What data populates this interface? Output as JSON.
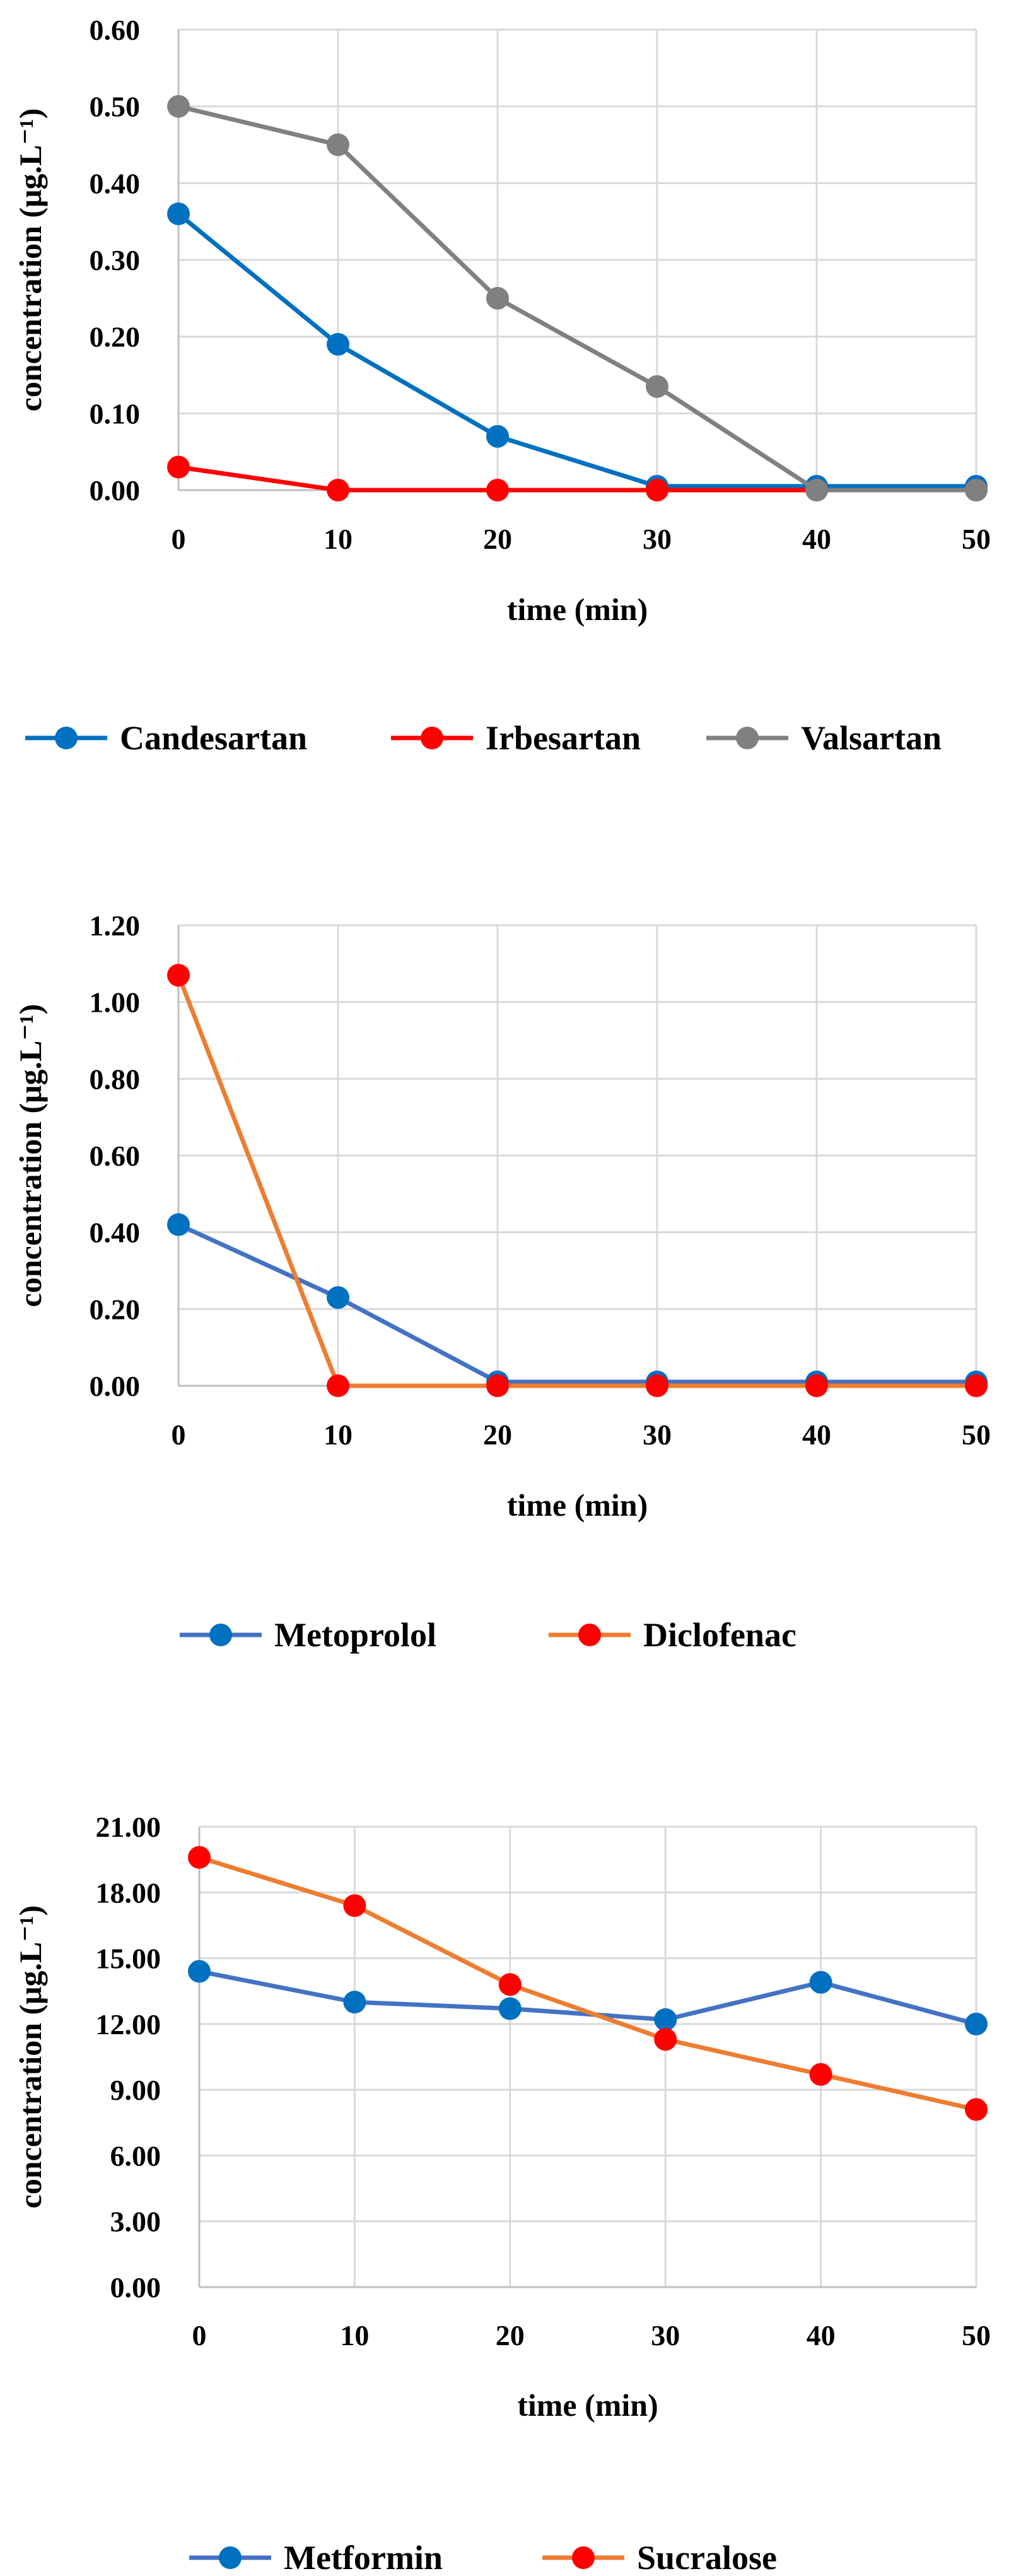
{
  "chart_data": [
    {
      "type": "line",
      "xlabel": "time (min)",
      "ylabel": "concentration (μg.L⁻¹)",
      "x": [
        0,
        10,
        20,
        30,
        40,
        50
      ],
      "xlim": [
        0,
        50
      ],
      "ylim": [
        0,
        0.6
      ],
      "x_ticks": [
        "0",
        "10",
        "20",
        "30",
        "40",
        "50"
      ],
      "y_ticks": [
        "0.00",
        "0.10",
        "0.20",
        "0.30",
        "0.40",
        "0.50",
        "0.60"
      ],
      "grid": true,
      "legend_position": "bottom",
      "series": [
        {
          "name": "Candesartan",
          "color": "#0070c0",
          "values": [
            0.36,
            0.19,
            0.07,
            0.005,
            0.005,
            0.005
          ]
        },
        {
          "name": "Irbesartan",
          "color": "#ff0000",
          "values": [
            0.03,
            0.0,
            0.0,
            0.0,
            0.0,
            0.0
          ]
        },
        {
          "name": "Valsartan",
          "color": "#808080",
          "values": [
            0.5,
            0.45,
            0.25,
            0.135,
            0.0,
            0.0
          ]
        }
      ]
    },
    {
      "type": "line",
      "xlabel": "time (min)",
      "ylabel": "concentration (μg.L⁻¹)",
      "x": [
        0,
        10,
        20,
        30,
        40,
        50
      ],
      "xlim": [
        0,
        50
      ],
      "ylim": [
        0,
        1.2
      ],
      "x_ticks": [
        "0",
        "10",
        "20",
        "30",
        "40",
        "50"
      ],
      "y_ticks": [
        "0.00",
        "0.20",
        "0.40",
        "0.60",
        "0.80",
        "1.00",
        "1.20"
      ],
      "grid": true,
      "legend_position": "bottom",
      "series": [
        {
          "name": "Metoprolol",
          "color": "#4472c4",
          "marker_color": "#0070c0",
          "values": [
            0.42,
            0.23,
            0.01,
            0.01,
            0.01,
            0.01
          ]
        },
        {
          "name": "Diclofenac",
          "color": "#ed7d31",
          "marker_color": "#ff0000",
          "values": [
            1.07,
            0.0,
            0.0,
            0.0,
            0.0,
            0.0
          ]
        }
      ]
    },
    {
      "type": "line",
      "xlabel": "time (min)",
      "ylabel": "concentration (μg.L⁻¹)",
      "x": [
        0,
        10,
        20,
        30,
        40,
        50
      ],
      "xlim": [
        0,
        50
      ],
      "ylim": [
        0,
        21
      ],
      "x_ticks": [
        "0",
        "10",
        "20",
        "30",
        "40",
        "50"
      ],
      "y_ticks": [
        "0.00",
        "3.00",
        "6.00",
        "9.00",
        "12.00",
        "15.00",
        "18.00",
        "21.00"
      ],
      "grid": true,
      "legend_position": "bottom",
      "series": [
        {
          "name": "Metformin",
          "color": "#4472c4",
          "marker_color": "#0070c0",
          "values": [
            14.4,
            13.0,
            12.7,
            12.2,
            13.9,
            12.0
          ]
        },
        {
          "name": "Sucralose",
          "color": "#ed7d31",
          "marker_color": "#ff0000",
          "values": [
            19.6,
            17.4,
            13.8,
            11.3,
            9.7,
            8.1
          ]
        }
      ]
    }
  ]
}
